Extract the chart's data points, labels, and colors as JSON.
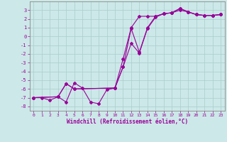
{
  "xlabel": "Windchill (Refroidissement éolien,°C)",
  "ylabel": "",
  "bg_color": "#cce8e8",
  "grid_color": "#aacccc",
  "line_color": "#990099",
  "xlim": [
    -0.5,
    23.5
  ],
  "ylim": [
    -8.5,
    4.0
  ],
  "xticks": [
    0,
    1,
    2,
    3,
    4,
    5,
    6,
    7,
    8,
    9,
    10,
    11,
    12,
    13,
    14,
    15,
    16,
    17,
    18,
    19,
    20,
    21,
    22,
    23
  ],
  "yticks": [
    -8,
    -7,
    -6,
    -5,
    -4,
    -3,
    -2,
    -1,
    0,
    1,
    2,
    3
  ],
  "series1_x": [
    0,
    1,
    2,
    3,
    4,
    5,
    6,
    7,
    8,
    9,
    10,
    11,
    12,
    13,
    14,
    15,
    16,
    17,
    18,
    19,
    20,
    21,
    22,
    23
  ],
  "series1_y": [
    -7.0,
    -7.0,
    -7.3,
    -6.9,
    -7.5,
    -5.3,
    -5.9,
    -7.5,
    -7.7,
    -6.1,
    -5.9,
    -3.5,
    -0.8,
    -1.9,
    0.9,
    2.2,
    2.6,
    2.7,
    3.0,
    2.8,
    2.5,
    2.4,
    2.4,
    2.5
  ],
  "series2_x": [
    0,
    3,
    4,
    5,
    10,
    11,
    12,
    13,
    14,
    15,
    16,
    17,
    18,
    19,
    20,
    21,
    22,
    23
  ],
  "series2_y": [
    -7.0,
    -6.9,
    -5.4,
    -6.0,
    -5.9,
    -3.5,
    0.9,
    -1.8,
    1.0,
    2.3,
    2.6,
    2.7,
    3.2,
    2.8,
    2.5,
    2.4,
    2.4,
    2.5
  ],
  "series3_x": [
    0,
    3,
    4,
    5,
    10,
    11,
    12,
    13,
    14,
    15,
    16,
    17,
    18,
    19,
    20,
    21,
    22,
    23
  ],
  "series3_y": [
    -7.0,
    -6.9,
    -5.4,
    -6.0,
    -5.9,
    -2.6,
    1.0,
    2.3,
    2.3,
    2.3,
    2.6,
    2.7,
    3.2,
    2.8,
    2.5,
    2.4,
    2.4,
    2.5
  ]
}
